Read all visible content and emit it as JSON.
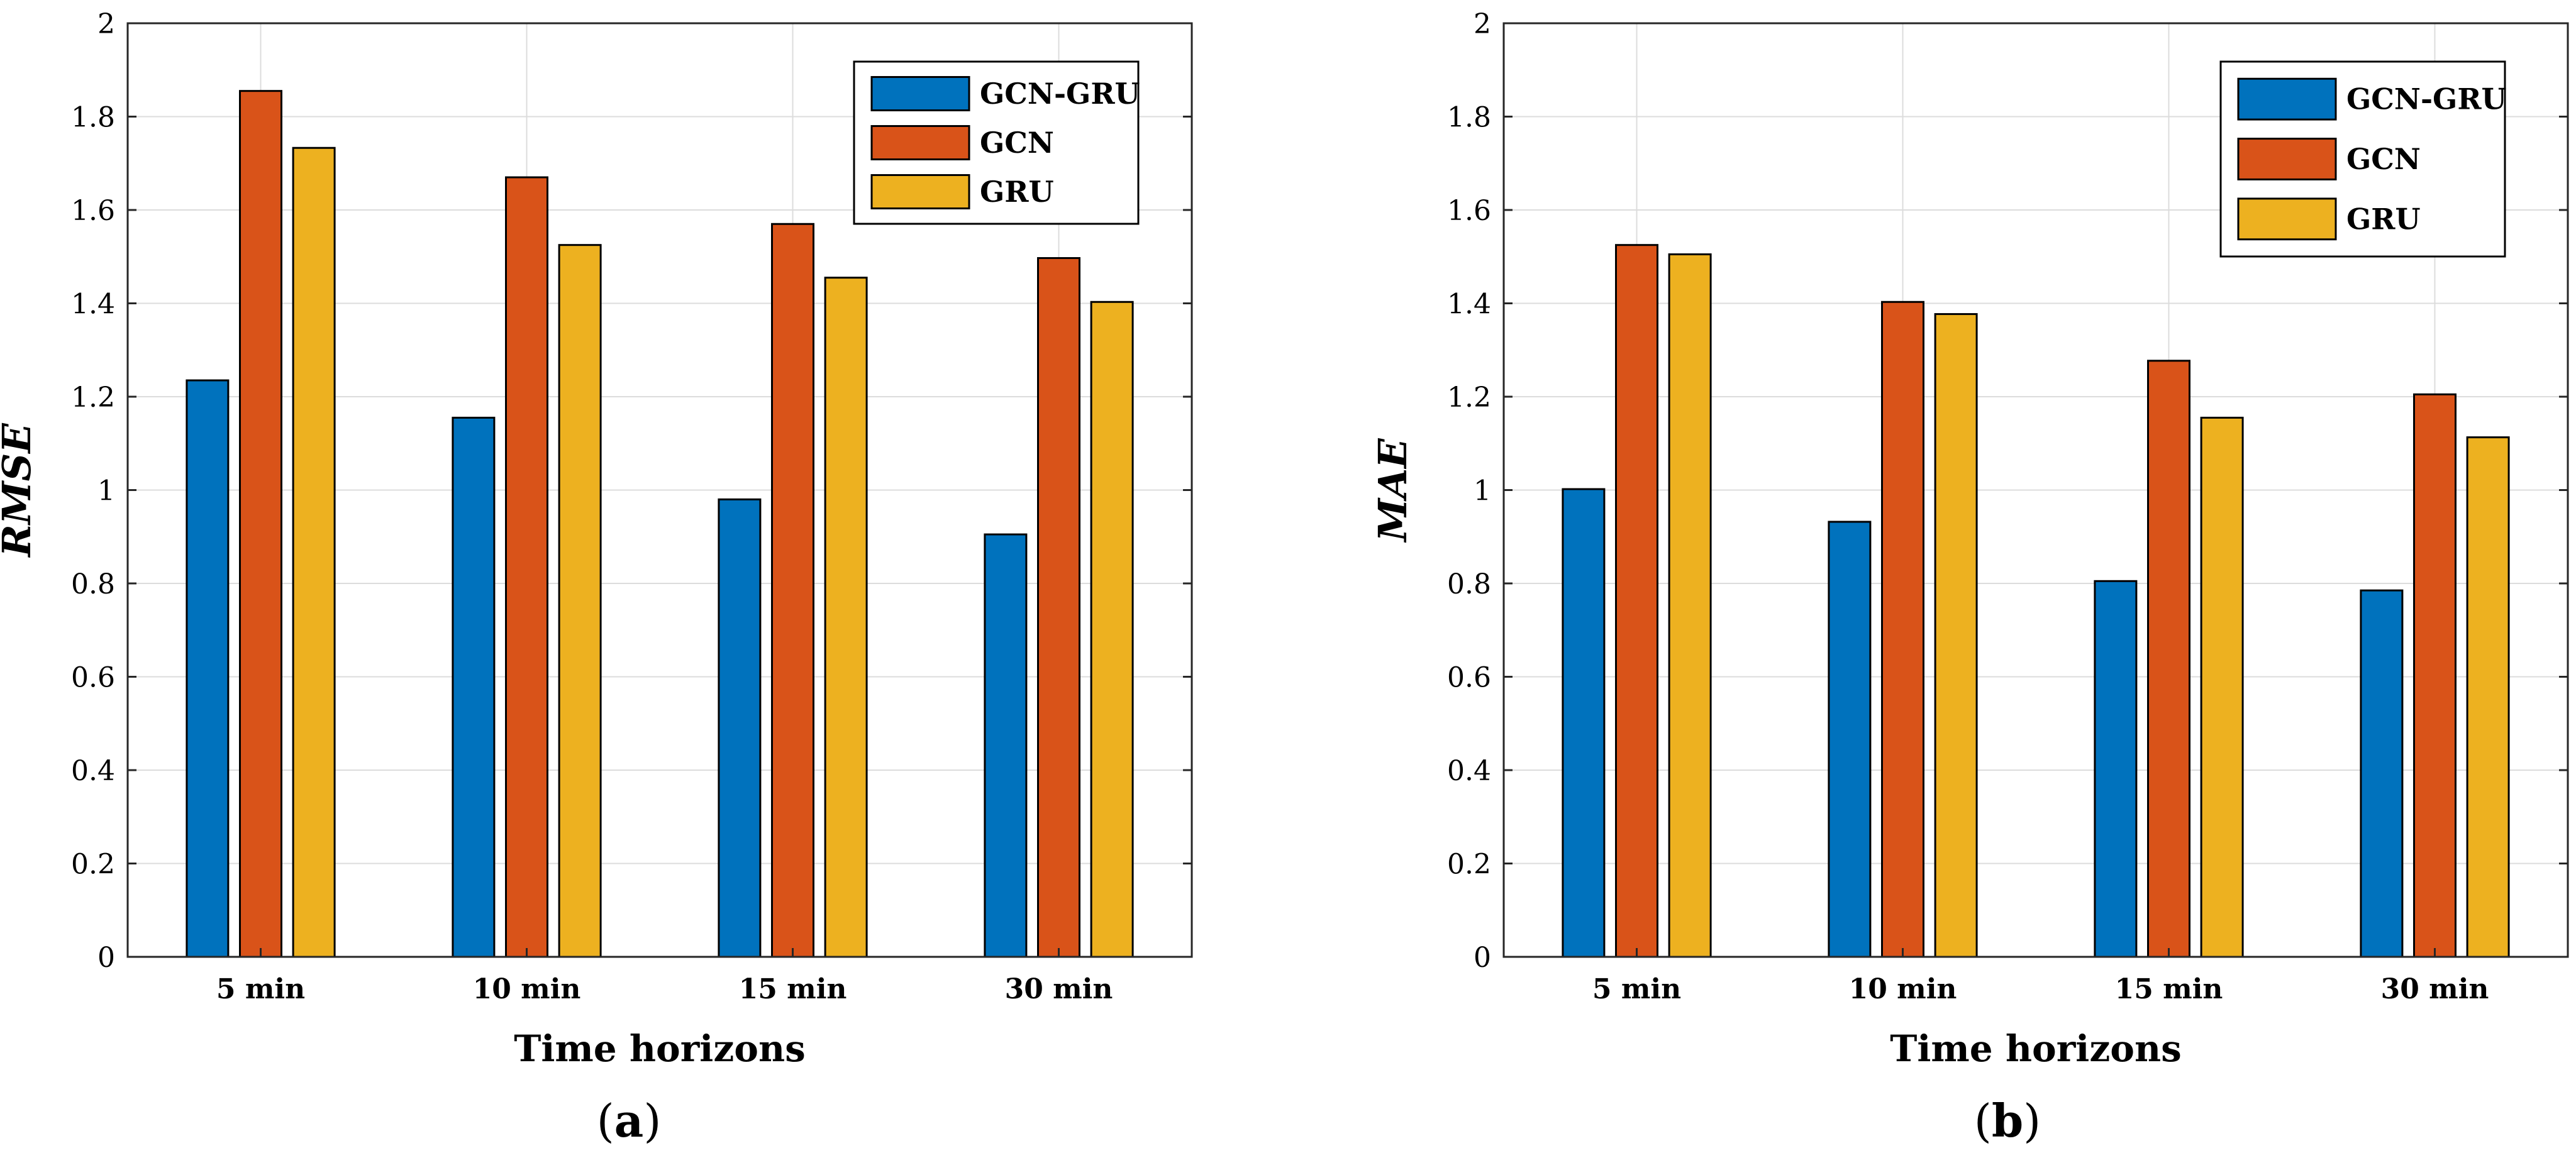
{
  "chart_data": [
    {
      "type": "bar",
      "panel_label": "a",
      "categories": [
        "5 min",
        "10 min",
        "15 min",
        "30 min"
      ],
      "series": [
        {
          "name": "GCN-GRU",
          "values": [
            1.235,
            1.155,
            0.98,
            0.905
          ]
        },
        {
          "name": "GCN",
          "values": [
            1.855,
            1.67,
            1.57,
            1.497
          ]
        },
        {
          "name": "GRU",
          "values": [
            1.733,
            1.525,
            1.455,
            1.403
          ]
        }
      ],
      "xlabel": "Time horizons",
      "ylabel": "RMSE",
      "ylim": [
        0,
        2
      ],
      "yticks": [
        "0",
        "0.2",
        "0.4",
        "0.6",
        "0.8",
        "1",
        "1.2",
        "1.4",
        "1.6",
        "1.8",
        "2"
      ],
      "grid": true,
      "legend_position": "top-right"
    },
    {
      "type": "bar",
      "panel_label": "b",
      "categories": [
        "5 min",
        "10 min",
        "15 min",
        "30 min"
      ],
      "series": [
        {
          "name": "GCN-GRU",
          "values": [
            1.002,
            0.932,
            0.805,
            0.785
          ]
        },
        {
          "name": "GCN",
          "values": [
            1.525,
            1.403,
            1.277,
            1.205
          ]
        },
        {
          "name": "GRU",
          "values": [
            1.505,
            1.377,
            1.155,
            1.113
          ]
        }
      ],
      "xlabel": "Time horizons",
      "ylabel": "MAE",
      "ylim": [
        0,
        2
      ],
      "yticks": [
        "0",
        "0.2",
        "0.4",
        "0.6",
        "0.8",
        "1",
        "1.2",
        "1.4",
        "1.6",
        "1.8",
        "2"
      ],
      "grid": true,
      "legend_position": "top-right"
    }
  ],
  "colors": {
    "GCN-GRU": "#0072BD",
    "GCN": "#D95319",
    "GRU": "#EDB120",
    "grid": "#DCDCDC",
    "axis": "#262626"
  },
  "captions": {
    "a": {
      "open": "(",
      "label": "a",
      "close": ")"
    },
    "b": {
      "open": "(",
      "label": "b",
      "close": ")"
    }
  }
}
